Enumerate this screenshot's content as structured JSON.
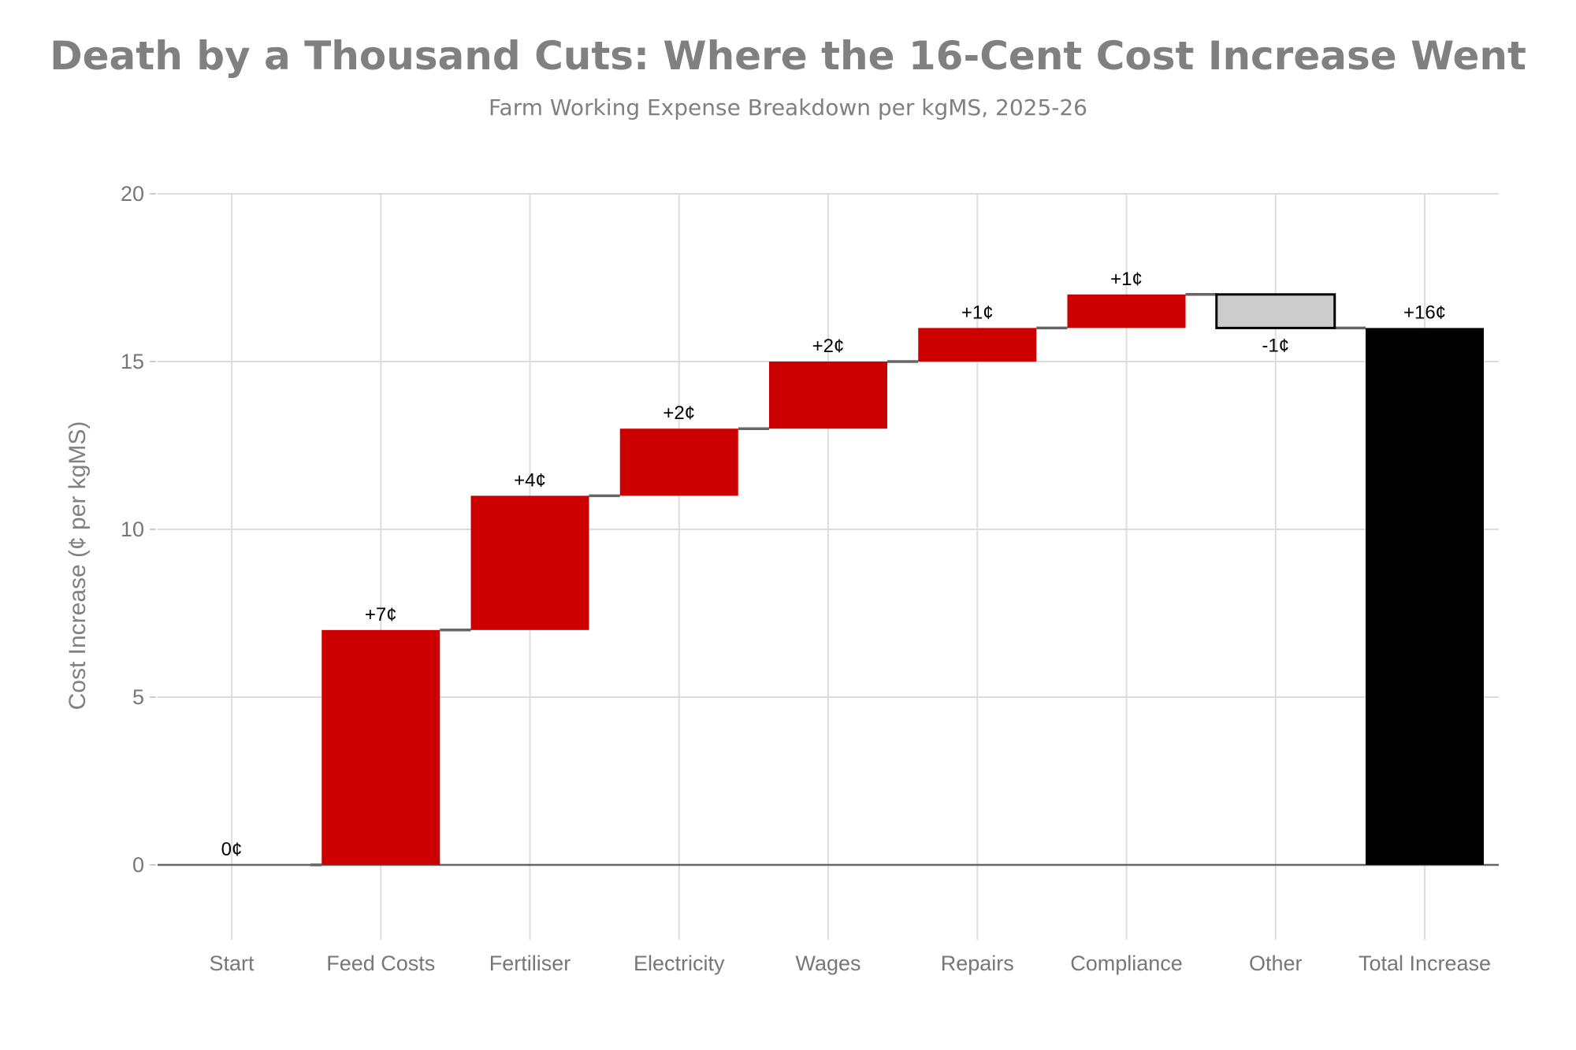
{
  "chart_data": {
    "type": "waterfall",
    "title": "Death by a Thousand Cuts: Where the 16-Cent Cost Increase Went",
    "subtitle": "Farm Working Expense Breakdown per kgMS, 2025-26",
    "xlabel": "",
    "ylabel": "Cost Increase (¢ per kgMS)",
    "ylim": [
      -2,
      20
    ],
    "yticks": [
      0,
      5,
      10,
      15,
      20
    ],
    "grid": true,
    "categories": [
      "Start",
      "Feed Costs",
      "Fertiliser",
      "Electricity",
      "Wages",
      "Repairs",
      "Compliance",
      "Other",
      "Total Increase"
    ],
    "steps": [
      {
        "category": "Start",
        "kind": "start",
        "value": 0,
        "base": 0,
        "end": 0,
        "label": "0¢"
      },
      {
        "category": "Feed Costs",
        "kind": "increase",
        "value": 7,
        "base": 0,
        "end": 7,
        "label": "+7¢"
      },
      {
        "category": "Fertiliser",
        "kind": "increase",
        "value": 4,
        "base": 7,
        "end": 11,
        "label": "+4¢"
      },
      {
        "category": "Electricity",
        "kind": "increase",
        "value": 2,
        "base": 11,
        "end": 13,
        "label": "+2¢"
      },
      {
        "category": "Wages",
        "kind": "increase",
        "value": 2,
        "base": 13,
        "end": 15,
        "label": "+2¢"
      },
      {
        "category": "Repairs",
        "kind": "increase",
        "value": 1,
        "base": 15,
        "end": 16,
        "label": "+1¢"
      },
      {
        "category": "Compliance",
        "kind": "increase",
        "value": 1,
        "base": 16,
        "end": 17,
        "label": "+1¢"
      },
      {
        "category": "Other",
        "kind": "decrease",
        "value": -1,
        "base": 17,
        "end": 16,
        "label": "-1¢"
      },
      {
        "category": "Total Increase",
        "kind": "total",
        "value": 16,
        "base": 0,
        "end": 16,
        "label": "+16¢"
      }
    ],
    "colors": {
      "increase": "#cc0000",
      "decrease": "#cccccc",
      "decrease_outline": "#000000",
      "total": "#000000",
      "connector": "#666666",
      "grid": "#dddddd",
      "text": "#808080"
    }
  }
}
